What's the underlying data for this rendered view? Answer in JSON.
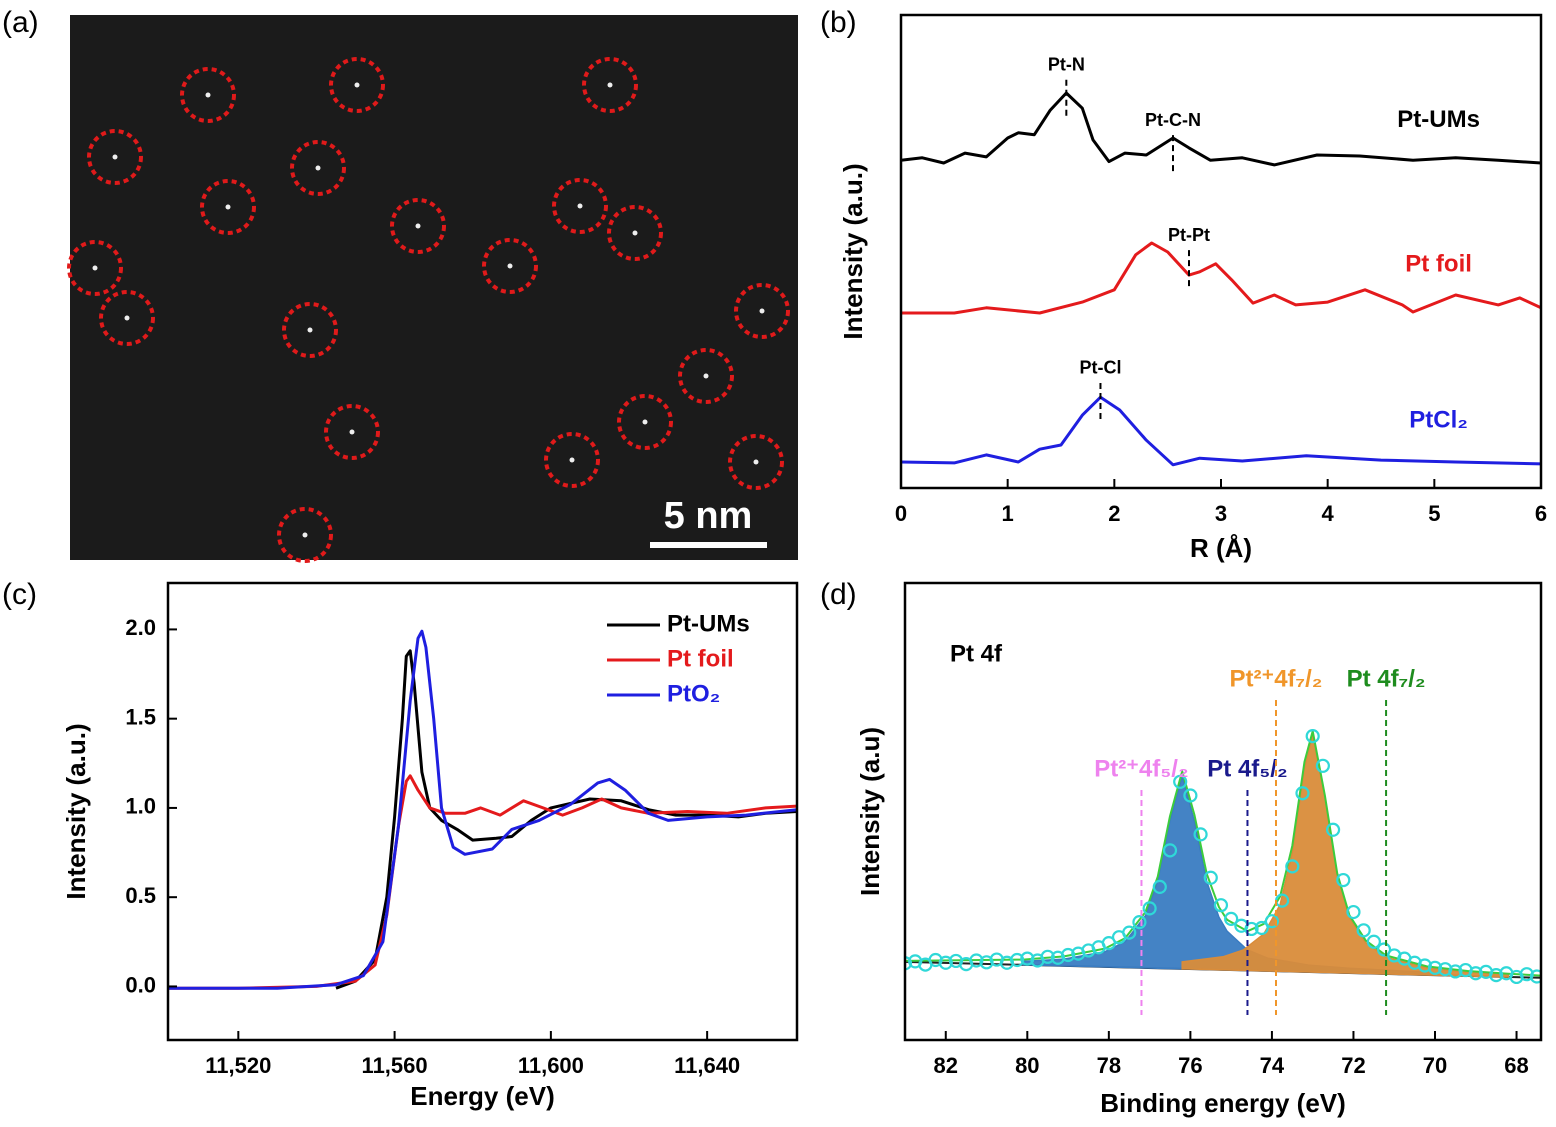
{
  "chart_data": [
    {
      "type": "image",
      "label": "(a)",
      "scale_bar": "5 nm"
    },
    {
      "type": "line",
      "label": "(b)",
      "xlabel": "R (Å)",
      "ylabel": "Intensity (a.u.)",
      "xlim": [
        0,
        6
      ],
      "xticks": [
        0,
        1,
        2,
        3,
        4,
        5,
        6
      ],
      "ylim": [
        0,
        100
      ],
      "legend": "inline",
      "annotation_lines": "short",
      "series": [
        {
          "name": "Pt-UMs",
          "color": "#000000",
          "x": [
            0,
            0.2,
            0.4,
            0.6,
            0.8,
            1.0,
            1.1,
            1.25,
            1.4,
            1.55,
            1.7,
            1.8,
            1.95,
            2.1,
            2.3,
            2.55,
            2.7,
            2.9,
            3.2,
            3.5,
            3.9,
            4.3,
            4.8,
            5.2,
            5.6,
            6.0
          ],
          "values": [
            69.3,
            69.8,
            68.7,
            70.8,
            70.0,
            74.0,
            75.1,
            74.7,
            79.9,
            83.5,
            80.3,
            73.6,
            69.0,
            70.8,
            70.4,
            74.0,
            71.9,
            69.3,
            69.8,
            68.3,
            70.4,
            70.2,
            69.3,
            69.8,
            69.3,
            68.7
          ]
        },
        {
          "name": "Pt foil",
          "color": "#e41a1c",
          "x": [
            0,
            0.5,
            0.8,
            1.3,
            1.7,
            2.0,
            2.2,
            2.35,
            2.5,
            2.7,
            2.8,
            2.95,
            3.1,
            3.3,
            3.5,
            3.7,
            4.0,
            4.35,
            4.7,
            4.8,
            5.2,
            5.6,
            5.8,
            6.0
          ],
          "values": [
            37.0,
            37.0,
            38.1,
            37.0,
            39.3,
            41.9,
            49.3,
            51.8,
            49.9,
            45.0,
            45.7,
            47.4,
            44.0,
            39.1,
            40.8,
            38.7,
            39.3,
            41.9,
            38.7,
            37.2,
            40.8,
            38.7,
            40.2,
            38.1
          ]
        },
        {
          "name": "PtCl₂",
          "color": "#1f1fe0",
          "x": [
            0,
            0.5,
            0.8,
            1.1,
            1.3,
            1.5,
            1.7,
            1.87,
            2.05,
            2.3,
            2.55,
            2.8,
            3.2,
            3.8,
            4.5,
            5.2,
            6.0
          ],
          "values": [
            5.5,
            5.3,
            7.0,
            5.5,
            8.2,
            9.1,
            15.4,
            19.2,
            16.5,
            10.1,
            4.9,
            6.3,
            5.7,
            6.8,
            5.9,
            5.5,
            5.1
          ]
        }
      ],
      "annotations": [
        {
          "text": "Pt-N",
          "x": 1.55,
          "y": 86.3
        },
        {
          "text": "Pt-C-N",
          "x": 2.55,
          "y": 74.6
        },
        {
          "text": "Pt-Pt",
          "x": 2.7,
          "y": 50.3
        },
        {
          "text": "Pt-Cl",
          "x": 1.87,
          "y": 22.2
        }
      ]
    },
    {
      "type": "line",
      "label": "(c)",
      "xlabel": "Energy (eV)",
      "ylabel": "Intensity (a.u.)",
      "xlim": [
        11502,
        11663
      ],
      "xticks": [
        {
          "value": 11520,
          "label": "11,520"
        },
        {
          "value": 11560,
          "label": "11,560"
        },
        {
          "value": 11600,
          "label": "11,600"
        },
        {
          "value": 11640,
          "label": "11,640"
        }
      ],
      "ylim": [
        -0.3,
        2.26
      ],
      "yticks": [
        {
          "value": 0,
          "label": "0.0"
        },
        {
          "value": 0.5,
          "label": "0.5"
        },
        {
          "value": 1,
          "label": "1.0"
        },
        {
          "value": 1.5,
          "label": "1.5"
        },
        {
          "value": 2,
          "label": "2.0"
        }
      ],
      "legend": "upper right",
      "series": [
        {
          "name": "Pt-UMs",
          "color": "#000000",
          "x": [
            11545,
            11550,
            11555,
            11558,
            11560,
            11562,
            11563,
            11564,
            11565,
            11567,
            11569,
            11572,
            11576,
            11580,
            11586,
            11590,
            11595,
            11600,
            11610,
            11618,
            11625,
            11632,
            11640,
            11648,
            11655,
            11663
          ],
          "values": [
            -0.01,
            0.03,
            0.15,
            0.5,
            0.95,
            1.5,
            1.85,
            1.88,
            1.7,
            1.2,
            1.0,
            0.93,
            0.88,
            0.82,
            0.83,
            0.84,
            0.93,
            1.0,
            1.05,
            1.04,
            0.99,
            0.96,
            0.96,
            0.95,
            0.97,
            0.98
          ]
        },
        {
          "name": "Pt foil",
          "color": "#e41a1c",
          "x": [
            11502,
            11520,
            11540,
            11550,
            11555,
            11558,
            11561,
            11563,
            11564,
            11566,
            11569,
            11573,
            11578,
            11582,
            11587,
            11593,
            11598,
            11603,
            11608,
            11613,
            11618,
            11625,
            11635,
            11645,
            11655,
            11663
          ],
          "values": [
            -0.01,
            -0.01,
            0.0,
            0.03,
            0.12,
            0.4,
            0.9,
            1.15,
            1.18,
            1.1,
            1.0,
            0.97,
            0.97,
            1.0,
            0.96,
            1.04,
            1.0,
            0.96,
            1.0,
            1.05,
            1.0,
            0.97,
            0.98,
            0.97,
            1.0,
            1.01
          ]
        },
        {
          "name": "PtO₂",
          "color": "#1f1fe0",
          "x": [
            11502,
            11530,
            11545,
            11552,
            11557,
            11561,
            11564,
            11566,
            11567,
            11568,
            11570,
            11572,
            11575,
            11578,
            11585,
            11590,
            11597,
            11605,
            11612,
            11615,
            11619,
            11625,
            11630,
            11640,
            11650,
            11663
          ],
          "values": [
            -0.01,
            -0.01,
            0.01,
            0.06,
            0.25,
            0.9,
            1.6,
            1.95,
            1.99,
            1.9,
            1.5,
            1.0,
            0.78,
            0.74,
            0.77,
            0.88,
            0.93,
            1.02,
            1.14,
            1.16,
            1.1,
            0.97,
            0.93,
            0.95,
            0.96,
            0.99
          ]
        }
      ]
    },
    {
      "type": "line",
      "label": "(d)",
      "xlabel": "Binding energy (eV)",
      "ylabel": "Intensity (a.u)",
      "inset_text": "Pt 4f",
      "xlim": [
        83,
        67.4
      ],
      "xticks": [
        82,
        80,
        78,
        76,
        74,
        72,
        70,
        68
      ],
      "ylim": [
        0,
        100
      ],
      "annotation_lines": "full",
      "series": [
        {
          "kind": "line",
          "color": "#222222",
          "x": [
            83,
            67.4
          ],
          "values": [
            17.1,
            13.6
          ]
        },
        {
          "kind": "area",
          "color": "#3a7cc2",
          "x": [
            80.1,
            79.1,
            78.1,
            77.6,
            77.1,
            76.8,
            76.5,
            76.2,
            75.9,
            75.6,
            75.3,
            75.1,
            74.6,
            74.1,
            73.1,
            72.1,
            70.1
          ],
          "values": [
            17.2,
            17.7,
            19.3,
            21.5,
            27.2,
            34.9,
            48.0,
            57.7,
            47.8,
            34.7,
            26.9,
            23.8,
            19.7,
            17.9,
            16.4,
            15.7,
            14.8
          ]
        },
        {
          "kind": "area",
          "color": "#d98c3a",
          "x": [
            76.2,
            75.2,
            74.7,
            74.2,
            73.8,
            73.5,
            73.2,
            73.0,
            72.7,
            72.4,
            72.1,
            71.7,
            71.2,
            70.2,
            69.2,
            68.2
          ],
          "values": [
            17.1,
            18.2,
            19.7,
            23.2,
            29.6,
            41.0,
            59.6,
            66.7,
            52.9,
            35.9,
            26.8,
            21.3,
            18.1,
            15.8,
            14.8,
            14.3
          ]
        },
        {
          "kind": "line",
          "color": "#3ccc3c",
          "x": [
            83,
            80.1,
            79.1,
            78.1,
            77.6,
            77.1,
            76.8,
            76.5,
            76.2,
            75.9,
            75.6,
            75.3,
            75.1,
            74.6,
            74.2,
            73.8,
            73.5,
            73.2,
            73.0,
            72.7,
            72.4,
            72.1,
            71.7,
            71.2,
            70.2,
            69.2,
            68.2,
            67.4
          ],
          "values": [
            17.3,
            17.6,
            18.3,
            20.0,
            22.3,
            28.0,
            35.8,
            49.0,
            58.8,
            49.2,
            36.4,
            29.1,
            26.3,
            23.8,
            25.4,
            31.4,
            42.5,
            60.9,
            67.6,
            53.5,
            36.5,
            27.3,
            21.8,
            18.5,
            16.1,
            15.1,
            14.5,
            14.1
          ]
        },
        {
          "kind": "scatter",
          "color": "#2fd8d8",
          "x": [
            83,
            82.75,
            82.5,
            82.25,
            82,
            81.75,
            81.5,
            81.25,
            81,
            80.75,
            80.5,
            80.25,
            80,
            79.75,
            79.5,
            79.25,
            79,
            78.75,
            78.5,
            78.25,
            78,
            77.75,
            77.5,
            77.25,
            77,
            76.75,
            76.5,
            76.25,
            76,
            75.75,
            75.5,
            75.25,
            75,
            74.75,
            74.5,
            74.25,
            74,
            73.75,
            73.5,
            73.25,
            73,
            72.75,
            72.5,
            72.25,
            72,
            71.75,
            71.5,
            71.25,
            71,
            70.75,
            70.5,
            70.25,
            70,
            69.75,
            69.5,
            69.25,
            69,
            68.75,
            68.5,
            68.25,
            68,
            67.75,
            67.5
          ],
          "values": [
            16.8,
            17.2,
            16.5,
            17.5,
            16.9,
            17.3,
            16.6,
            17.4,
            17.0,
            17.6,
            16.9,
            17.5,
            17.8,
            17.4,
            18.2,
            18.0,
            18.6,
            18.9,
            19.6,
            20.3,
            21.2,
            22.5,
            23.5,
            25.8,
            28.8,
            33.5,
            41.5,
            56.5,
            53.5,
            45.0,
            35.5,
            29.5,
            26.5,
            25.0,
            24.3,
            24.5,
            26.0,
            30.5,
            38.0,
            54.0,
            66.5,
            60.0,
            46.0,
            35.0,
            28.0,
            24.0,
            21.5,
            19.8,
            18.5,
            17.8,
            16.9,
            16.3,
            15.8,
            15.5,
            15.0,
            15.3,
            14.6,
            14.9,
            14.2,
            14.6,
            13.8,
            14.4,
            13.9
          ]
        }
      ],
      "annotations": [
        {
          "text": "Pt²⁺4f₅/₂",
          "x": 77.2,
          "y": 54.7,
          "color": "#ee82ee"
        },
        {
          "text": "Pt 4f₅/₂",
          "x": 74.6,
          "y": 54.7,
          "color": "#1a1a8c"
        },
        {
          "text": "Pt²⁺4f₇/₂",
          "x": 73.9,
          "y": 74.4,
          "color": "#f0962a"
        },
        {
          "text": "Pt 4f₇/₂",
          "x": 71.2,
          "y": 74.4,
          "color": "#1e8c1e"
        }
      ]
    }
  ]
}
